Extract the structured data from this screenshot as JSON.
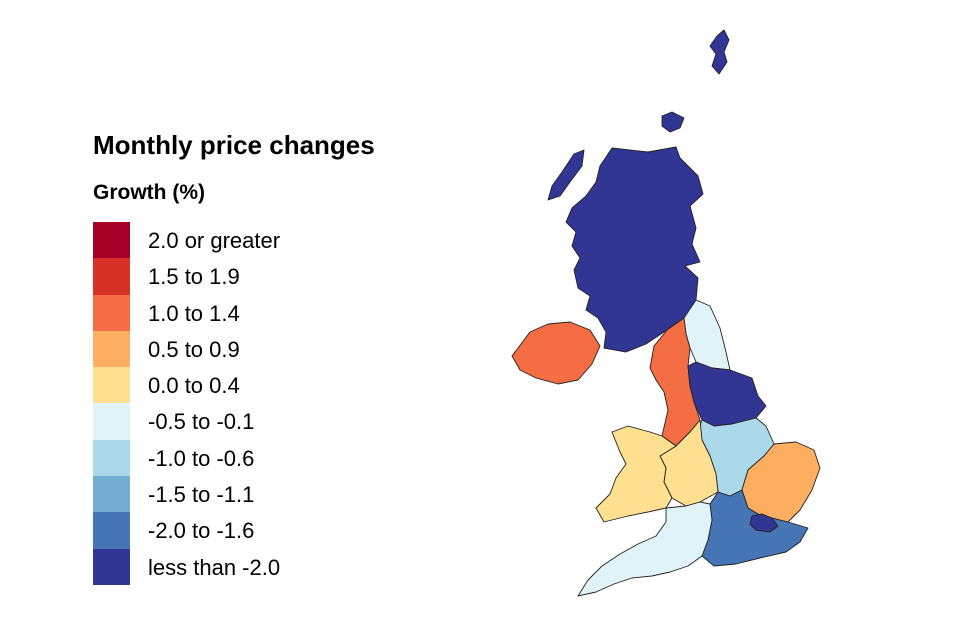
{
  "title": "Monthly price changes",
  "subtitle": "Growth (%)",
  "legend": [
    {
      "label": "2.0 or greater",
      "color": "#a50026"
    },
    {
      "label": "1.5 to 1.9",
      "color": "#d73027"
    },
    {
      "label": "1.0 to 1.4",
      "color": "#f46d43"
    },
    {
      "label": "0.5 to 0.9",
      "color": "#fdae61"
    },
    {
      "label": "0.0 to 0.4",
      "color": "#fee090"
    },
    {
      "label": "-0.5 to -0.1",
      "color": "#e0f3f8"
    },
    {
      "label": "-1.0 to -0.6",
      "color": "#abd9e9"
    },
    {
      "label": "-1.5 to -1.1",
      "color": "#74add1"
    },
    {
      "label": "-2.0 to -1.6",
      "color": "#4575b4"
    },
    {
      "label": "less than -2.0",
      "color": "#313695"
    }
  ],
  "regions": [
    {
      "name": "Scotland",
      "band": "less than -2.0",
      "color": "#313695"
    },
    {
      "name": "Northern Ireland",
      "band": "1.0 to 1.4",
      "color": "#f46d43"
    },
    {
      "name": "North East",
      "band": "-0.5 to -0.1",
      "color": "#e0f3f8"
    },
    {
      "name": "North West",
      "band": "1.0 to 1.4",
      "color": "#f46d43"
    },
    {
      "name": "Yorkshire and The Humber",
      "band": "less than -2.0",
      "color": "#313695"
    },
    {
      "name": "East Midlands",
      "band": "-1.0 to -0.6",
      "color": "#abd9e9"
    },
    {
      "name": "West Midlands",
      "band": "0.0 to 0.4",
      "color": "#fee090"
    },
    {
      "name": "Wales",
      "band": "0.0 to 0.4",
      "color": "#fee090"
    },
    {
      "name": "East of England",
      "band": "0.5 to 0.9",
      "color": "#fdae61"
    },
    {
      "name": "London",
      "band": "less than -2.0",
      "color": "#313695"
    },
    {
      "name": "South East",
      "band": "-2.0 to -1.6",
      "color": "#4575b4"
    },
    {
      "name": "South West",
      "band": "-0.5 to -0.1",
      "color": "#e0f3f8"
    }
  ]
}
